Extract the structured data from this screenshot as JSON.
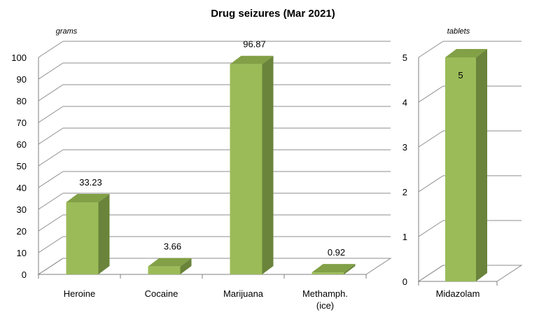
{
  "chart_data": [
    {
      "type": "bar",
      "title": "Drug seizures (Mar 2021)",
      "ylabel": "grams",
      "categories": [
        "Heroine",
        "Cocaine",
        "Marijuana",
        "Methamph. (ice)"
      ],
      "category_lines": [
        [
          "Heroine"
        ],
        [
          "Cocaine"
        ],
        [
          "Marijuana"
        ],
        [
          "Methamph.",
          "(ice)"
        ]
      ],
      "values": [
        33.23,
        3.66,
        96.87,
        0.92
      ],
      "data_labels": [
        "33.23",
        "3.66",
        "96.87",
        "0.92"
      ],
      "ylim": [
        0,
        100
      ],
      "yticks": [
        "0",
        "10",
        "20",
        "30",
        "40",
        "50",
        "60",
        "70",
        "80",
        "90",
        "100"
      ],
      "grid": true,
      "style": "3d-column"
    },
    {
      "type": "bar",
      "ylabel": "tablets",
      "categories": [
        "Midazolam"
      ],
      "category_lines": [
        [
          "Midazolam"
        ]
      ],
      "values": [
        5
      ],
      "data_labels": [
        "5"
      ],
      "ylim": [
        0,
        5
      ],
      "yticks": [
        "0",
        "1",
        "2",
        "3",
        "4",
        "5"
      ],
      "grid": true,
      "style": "3d-column"
    }
  ],
  "colors": {
    "bar_front": "#9bbb59",
    "bar_side": "#6a843b",
    "bar_top": "#82a046",
    "grid": "#8c8c8c",
    "axis": "#7f7f7f"
  }
}
